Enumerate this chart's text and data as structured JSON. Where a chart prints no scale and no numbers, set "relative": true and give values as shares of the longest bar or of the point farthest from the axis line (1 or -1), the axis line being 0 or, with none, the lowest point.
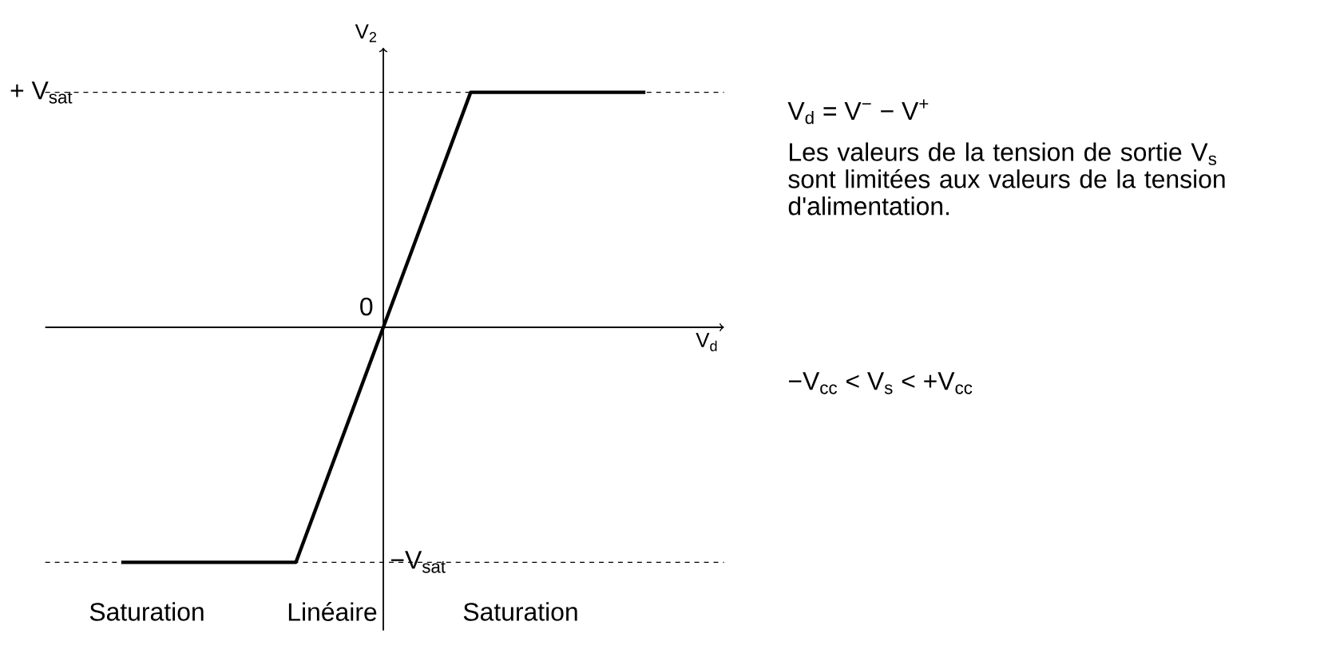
{
  "chart_data": {
    "type": "line",
    "categories": [
      null,
      null,
      null,
      null,
      null,
      null,
      null
    ],
    "series": [
      {
        "color": "#000000",
        "values": [
          -1,
          -1,
          -1,
          0,
          1,
          1,
          1
        ]
      }
    ],
    "relative": true,
    "xlabel": "V$_{d}$",
    "ylabel": "V$_{2}$",
    "ref_lines": [
      {
        "axis": "y",
        "value": 1,
        "line_style": "dashed"
      },
      {
        "axis": "y",
        "value": -1,
        "line_style": "dashed"
      }
    ],
    "annotations": [
      "V$_{d}$ = V$^{−}$ − V$^{+}$",
      "Les valeurs de la tension de sortie V$_{s}$ sont limitées aux valeurs de la tension d'alimentation.",
      "−V$_{cc}$ < V$_{s}$ < +V$_{cc}$",
      "Saturation",
      "Linéaire",
      "Saturation",
      "+ V$_{sat}$",
      "0",
      "−V$_{sat}$"
    ],
    "marker": "none",
    "line_style": "solid"
  }
}
